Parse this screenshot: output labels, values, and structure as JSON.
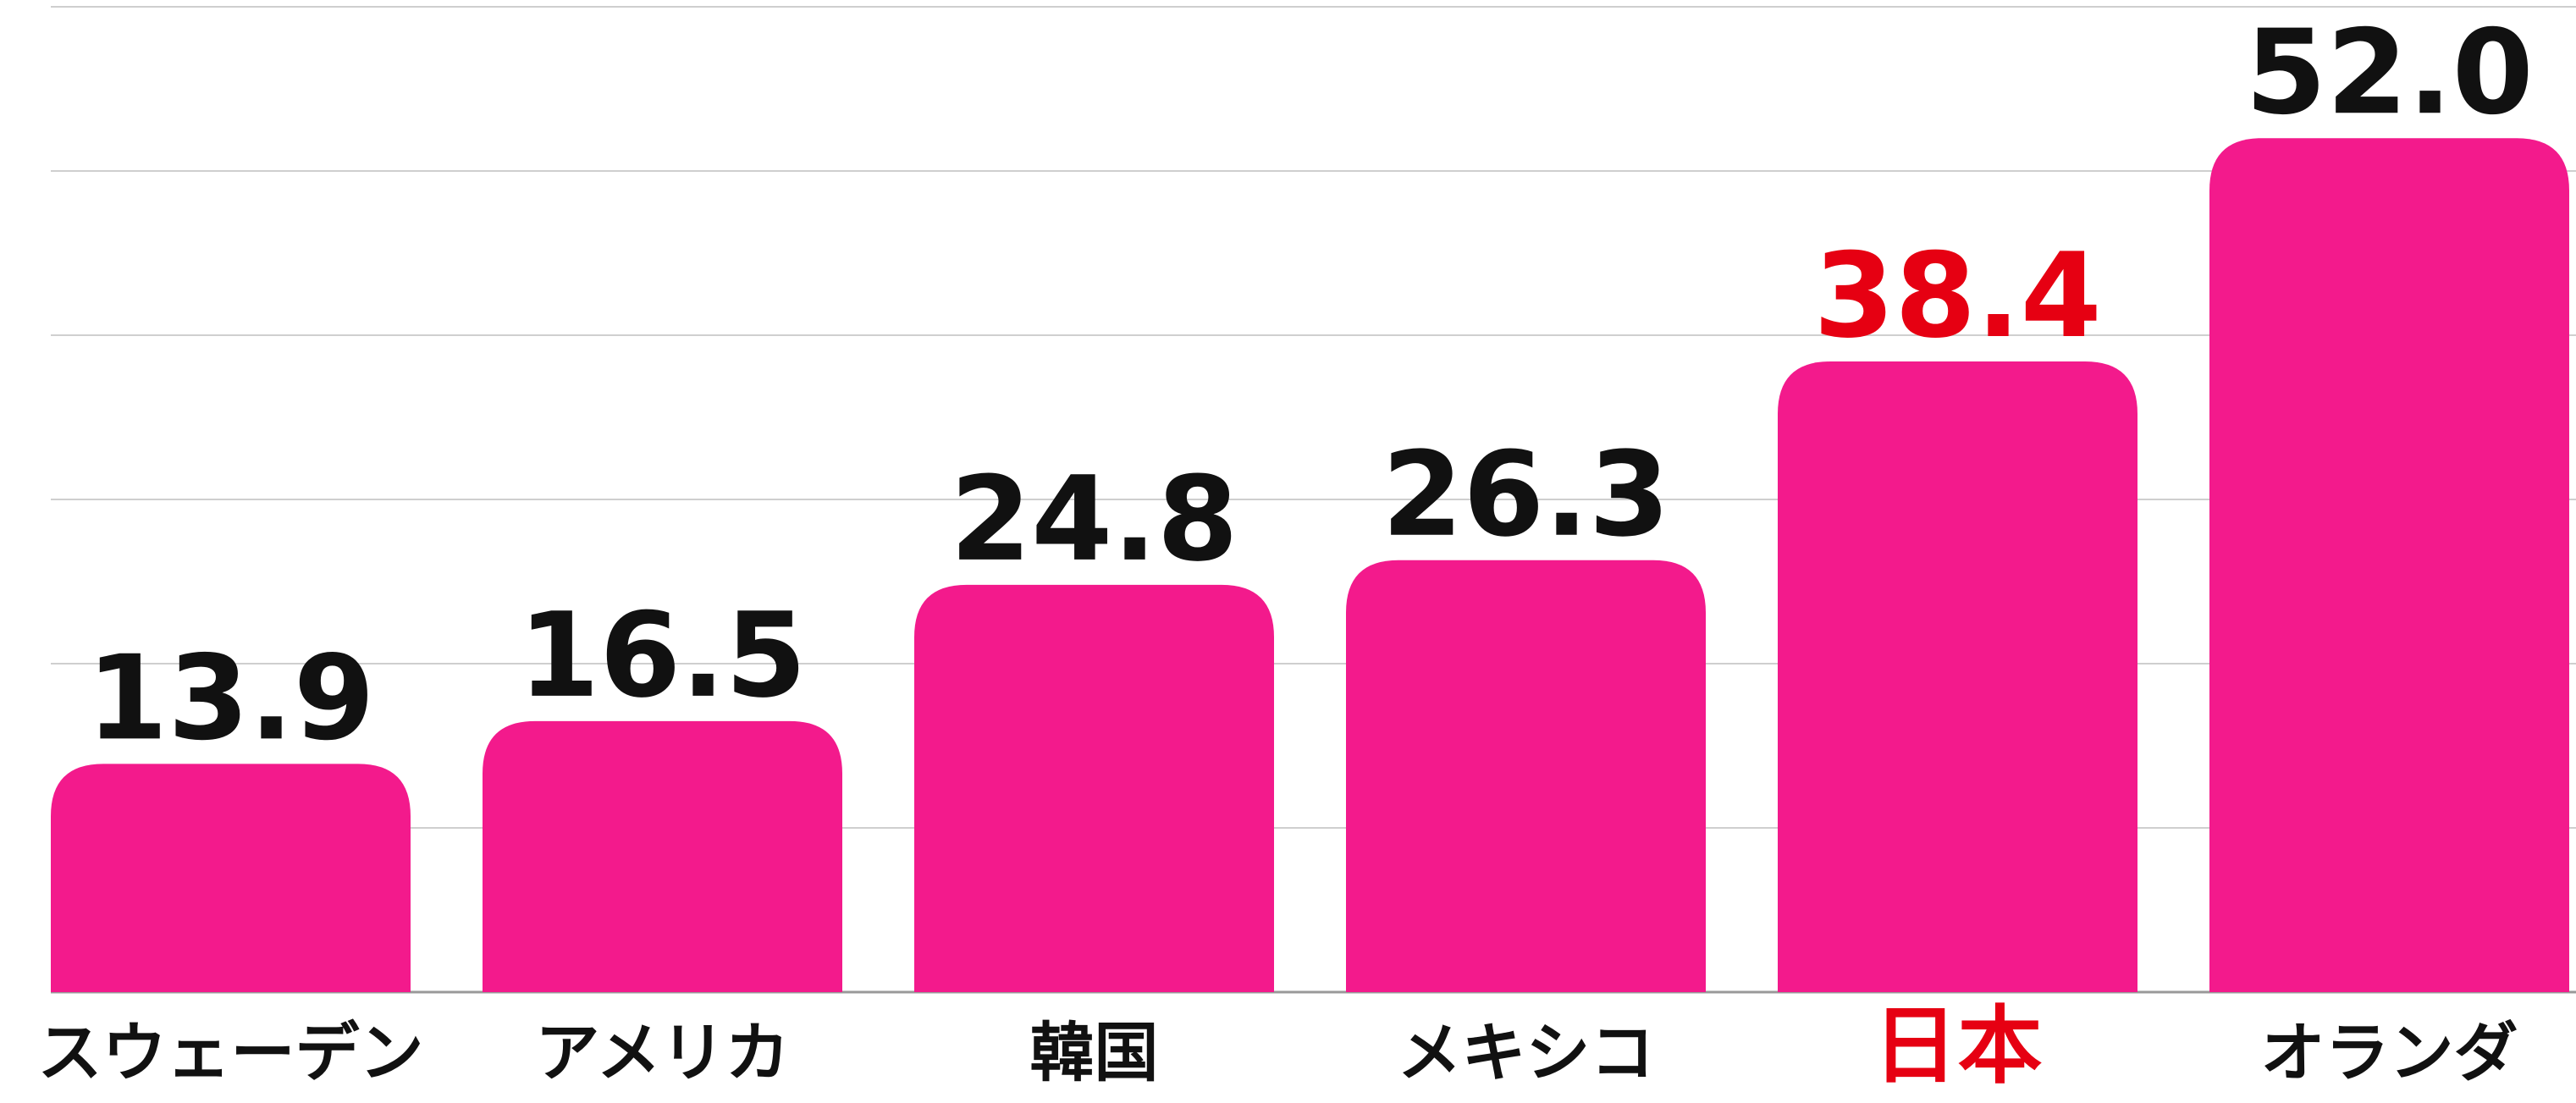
{
  "chart_data": {
    "type": "bar",
    "categories": [
      "スウェーデン",
      "アメリカ",
      "韓国",
      "メキシコ",
      "日本",
      "オランダ"
    ],
    "values": [
      13.9,
      16.5,
      24.8,
      26.3,
      38.4,
      52.0
    ],
    "value_labels": [
      "13.9",
      "16.5",
      "24.8",
      "26.3",
      "38.4",
      "52.0"
    ],
    "color": "#f31a8c",
    "label_colors": [
      "#111111",
      "#111111",
      "#111111",
      "#111111",
      "#e60012",
      "#111111"
    ],
    "ylim": [
      0,
      60
    ],
    "yticks": [
      0,
      10,
      20,
      30,
      40,
      50,
      60
    ],
    "grid": true
  }
}
